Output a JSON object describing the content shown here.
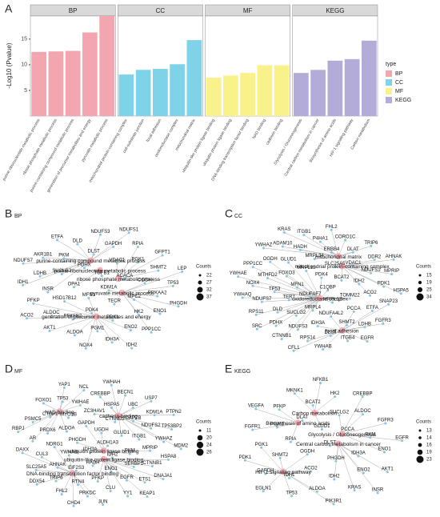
{
  "chart_data": {
    "type": "facet_bar",
    "panel_label": "A",
    "ylabel": "-Log10 (Pvalue)",
    "ylim": [
      0,
      19.5
    ],
    "yticks": [
      5,
      10,
      15
    ],
    "legend_title": "type",
    "facets": [
      {
        "name": "BP",
        "color": "#f4a6b0",
        "categories": [
          "purine ribonucleotide metabolic process",
          "ribose phosphate metabolic process",
          "purine-containing compound metabolic process",
          "generation of precursor metabolites and energy",
          "pyruvate metabolic process"
        ],
        "values": [
          12.5,
          12.6,
          12.7,
          16.3,
          19.5
        ]
      },
      {
        "name": "CC",
        "color": "#7fd3e8",
        "categories": [
          "mitochondrial protein-containing complex",
          "cell-substrate junction",
          "focal adhesion",
          "oxidoreductase complex",
          "mitochondrial matrix"
        ],
        "values": [
          8.1,
          9.0,
          9.2,
          10.1,
          14.8
        ]
      },
      {
        "name": "MF",
        "color": "#f9f18a",
        "categories": [
          "ubiquitin-like protein ligase binding",
          "ubiquitin protein ligase binding",
          "DNA-binding transcription factor binding",
          "NAD binding",
          "cadherin binding"
        ],
        "values": [
          7.5,
          7.9,
          8.4,
          9.9,
          9.9
        ]
      },
      {
        "name": "KEGG",
        "color": "#b3acd9",
        "categories": [
          "Glycolysis / Gluconeogenesis",
          "Central carbon metabolism in cancer",
          "Biosynthesis of amino acids",
          "HIF-1 signaling pathway",
          "Carbon metabolism"
        ],
        "values": [
          8.4,
          9.0,
          10.8,
          11.1,
          14.7
        ]
      }
    ]
  },
  "networks": [
    {
      "panel_label": "B",
      "title": "BP",
      "hubs": [
        "purine-containing compound metabolic process",
        "purine ribonucleotide metabolic process",
        "ribose phosphate metabolic process",
        "pyruvate metabolic process",
        "generation of precursor metabolites and energy"
      ],
      "genes": [
        "KDM1A",
        "MFN1",
        "TGFB1",
        "TECR",
        "OPA1",
        "ACACA",
        "PDK4",
        "PDHX",
        "MPC2",
        "HSD17B12",
        "VDAC1",
        "PDK1",
        "SUCLG2",
        "OGDH",
        "PFKFB2",
        "DLST",
        "HK2",
        "INSR",
        "PGK1",
        "PGM1",
        "PKM",
        "PRKAA2",
        "ALDOC",
        "GAPDH",
        "ENO2",
        "LDHB",
        "SHMT2",
        "ALDOA",
        "DLD",
        "ENO1",
        "PFKP",
        "RPIA",
        "IDH3A",
        "AKR1B1",
        "TP53",
        "AKT1",
        "NDUFS3",
        "PPP1CC",
        "IDH1",
        "GFPT1",
        "NOX4",
        "ETFA",
        "PHGDH",
        "ACO2",
        "NDUFS1",
        "IDH2",
        "NDUFS7",
        "LEP"
      ],
      "size_legend": {
        "title": "Counts",
        "values": [
          22,
          27,
          32,
          37
        ]
      }
    },
    {
      "panel_label": "C",
      "title": "CC",
      "hubs": [
        "mitochondrial matrix",
        "mitochondrial protein-containing complex",
        "oxidoreductase complex",
        "focal adhesion"
      ],
      "genes": [
        "C1QBP",
        "NDUFAF7",
        "PDK4",
        "MRPL12",
        "MFN1",
        "BCAT2",
        "MRPL4",
        "MRPL15",
        "TOMM22",
        "TERT",
        "SLC25A5",
        "NDUFA4L2",
        "FOXO3",
        "IDH2",
        "SUCLG2",
        "MRPL34",
        "PCCA",
        "TP53",
        "VDAC1",
        "IDH3A",
        "GLUD1",
        "ACO2",
        "DLD",
        "ERBB4",
        "SHMT2",
        "MTHFD2",
        "NDUFS1",
        "NDUFS3",
        "HADH",
        "ETFA",
        "NDUFS7",
        "DLAT",
        "DLST",
        "OGDH",
        "PDK1",
        "PDHX",
        "P4HA1",
        "LDHB",
        "NOX4",
        "DDR2",
        "RPS14",
        "ADAM10",
        "SNAP23",
        "RPS11",
        "CORO1C",
        "ITGB4",
        "PPP1CC",
        "MPRIP",
        "CTNNB1",
        "ITGB1",
        "FGFR3",
        "YWHAQ",
        "TRIP6",
        "YWHAB",
        "YWHAZ",
        "HSPA5",
        "SRC",
        "FHL2",
        "EGFR",
        "YWHAE",
        "AHNAK",
        "CFL1",
        "KRAS"
      ],
      "size_legend": {
        "title": "Counts",
        "values": [
          15,
          19,
          25,
          34
        ]
      }
    },
    {
      "panel_label": "D",
      "title": "MF",
      "hubs": [
        "cadherin binding",
        "NAD binding",
        "ubiquitin protein ligase binding",
        "ubiquitin-like protein ligase binding",
        "DNA-binding transcription factor binding"
      ],
      "genes": [
        "ALDH1A3",
        "IDH3A",
        "UGDH",
        "IDH2",
        "PHGDH",
        "GLUD1",
        "HADH",
        "GAPDH",
        "PKM",
        "YWHAB",
        "CTNND2",
        "ENO1",
        "ALDOA",
        "ITGB1",
        "EIF2S3",
        "ZC3HAV1",
        "SERBP1",
        "NDRG1",
        "CAPZB",
        "PFKP",
        "MYO1B",
        "MPRIP",
        "AHNAK",
        "HSPA5",
        "EGFR",
        "PRDX6",
        "NDUFS2",
        "RTN4",
        "YWHAE",
        "CTNNB1",
        "CUL3",
        "UBC",
        "CLU",
        "CTBP1",
        "YWHAZ",
        "TRIP6",
        "CREBBP",
        "ETS1",
        "AR",
        "KDM1A",
        "PRKDC",
        "TP53",
        "HSPA8",
        "SLC25A5",
        "BECN1",
        "YY1",
        "PSMC5",
        "TP53BP2",
        "FHL2",
        "NCL",
        "DNAJA1",
        "DAXX",
        "USP7",
        "JUN",
        "FOXO1",
        "MDM2",
        "DDX54",
        "YWHAH",
        "KEAP1",
        "RBPJ",
        "PTPN2",
        "CHD4",
        "YAP1"
      ],
      "size_legend": {
        "title": "Counts",
        "values": [
          11,
          20,
          24,
          26
        ]
      }
    },
    {
      "panel_label": "E",
      "title": "KEGG",
      "hubs": [
        "Carbon metabolism",
        "Biosynthesis of amino acids",
        "Glycolysis / Gluconeogenesis",
        "Central carbon metabolism in cancer",
        "HIF-1 signaling pathway"
      ],
      "genes": [
        "DLST",
        "OGDH",
        "GLUD1",
        "PHGDH",
        "RPIA",
        "PCCA",
        "ACO2",
        "DLAT",
        "IDH3A",
        "SHMT2",
        "SUCLG2",
        "IDH2",
        "PGM1",
        "PKM",
        "IDH1",
        "BCAT2",
        "ENO2",
        "PGK1",
        "ALDOC",
        "ALDOA",
        "PFKP",
        "ENO1",
        "GAPDH",
        "HK2",
        "KRAS",
        "FGFR1",
        "FGFR3",
        "TP53",
        "MKNK1",
        "AKT1",
        "PDK1",
        "CREBBP",
        "PIK3R1",
        "VEGFA",
        "EGFR",
        "EGLN1",
        "NFKB1",
        "INSR"
      ],
      "size_legend": {
        "title": "Counts",
        "values": [
          13,
          14,
          16,
          19,
          23
        ]
      }
    }
  ]
}
